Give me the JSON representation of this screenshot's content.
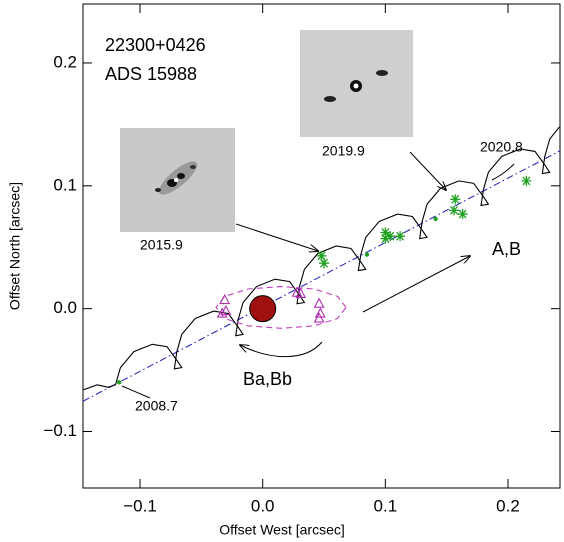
{
  "chart_data": {
    "type": "scatter",
    "xlabel": "Offset West [arcsec]",
    "ylabel": "Offset North [arcsec]",
    "xlim": [
      -0.1465,
      0.2424
    ],
    "ylim": [
      -0.146,
      0.248
    ],
    "xticks": [
      {
        "value": -0.1,
        "label": "−0.1"
      },
      {
        "value": 0,
        "label": "0.0"
      },
      0.1,
      0.2
    ],
    "yticks": [
      {
        "value": -0.1,
        "label": "−0.1"
      },
      {
        "value": 0,
        "label": "0.0"
      },
      0.1,
      0.2
    ],
    "annotations": [
      "22300+0426",
      "ADS 15988",
      "2015.9",
      "2019.9",
      "2020.8",
      "2008.7",
      "A,B",
      "Ba,Bb"
    ],
    "series": [
      {
        "color": "#2a2ab8",
        "line": "dashdot",
        "marker": "none",
        "x": [
          -0.1465,
          0.2424
        ],
        "y": [
          -0.0754,
          0.1285
        ]
      },
      {
        "color": "#000000",
        "line": "solid",
        "marker": "none",
        "x": [
          -0.146,
          -0.135,
          -0.126,
          -0.12,
          -0.116,
          -0.105,
          -0.09,
          -0.078,
          -0.07,
          -0.066,
          -0.072,
          -0.07,
          -0.066,
          -0.055,
          -0.04,
          -0.028,
          -0.02,
          -0.016,
          -0.022,
          -0.02,
          -0.016,
          -0.005,
          0.01,
          0.022,
          0.03,
          0.034,
          0.028,
          0.03,
          0.034,
          0.045,
          0.06,
          0.072,
          0.08,
          0.084,
          0.078,
          0.08,
          0.084,
          0.095,
          0.11,
          0.122,
          0.13,
          0.134,
          0.128,
          0.13,
          0.134,
          0.145,
          0.16,
          0.172,
          0.18,
          0.184,
          0.178,
          0.18,
          0.184,
          0.195,
          0.21,
          0.222,
          0.23,
          0.234,
          0.228,
          0.23,
          0.234,
          0.242
        ],
        "y": [
          -0.066,
          -0.062,
          -0.064,
          -0.062,
          -0.048,
          -0.035,
          -0.029,
          -0.031,
          -0.042,
          -0.048,
          -0.049,
          -0.035,
          -0.021,
          -0.008,
          -0.002,
          -0.004,
          -0.015,
          -0.021,
          -0.022,
          -0.009,
          0.005,
          0.018,
          0.024,
          0.022,
          0.011,
          0.005,
          0.004,
          0.018,
          0.032,
          0.045,
          0.051,
          0.049,
          0.038,
          0.032,
          0.031,
          0.044,
          0.058,
          0.071,
          0.077,
          0.075,
          0.064,
          0.058,
          0.057,
          0.071,
          0.085,
          0.098,
          0.104,
          0.102,
          0.091,
          0.085,
          0.084,
          0.097,
          0.111,
          0.124,
          0.13,
          0.128,
          0.117,
          0.111,
          0.11,
          0.124,
          0.138,
          0.148
        ]
      },
      {
        "color": "#c040c0",
        "line": "dashed",
        "marker": "none",
        "x": [
          0.068,
          0.061,
          0.042,
          0.015,
          -0.012,
          -0.031,
          -0.038,
          -0.031,
          -0.012,
          0.015,
          0.042,
          0.061,
          0.068
        ],
        "y": [
          0.001,
          0.01,
          0.016,
          0.018,
          0.016,
          0.01,
          0.001,
          -0.008,
          -0.014,
          -0.016,
          -0.014,
          -0.008,
          0.001
        ]
      },
      {
        "color": "#20a020",
        "line": "none",
        "marker": "dot",
        "x": [
          -0.117,
          0.085,
          0.141
        ],
        "y": [
          -0.06,
          0.044,
          0.073
        ]
      },
      {
        "color": "#20a020",
        "line": "none",
        "marker": "asterisk",
        "x": [
          0.05,
          0.048,
          0.1,
          0.104,
          0.1,
          0.112,
          0.157,
          0.156,
          0.163,
          0.215
        ],
        "y": [
          0.037,
          0.043,
          0.062,
          0.059,
          0.057,
          0.059,
          0.089,
          0.08,
          0.077,
          0.104
        ]
      },
      {
        "color": "#b030b0",
        "line": "none",
        "marker": "triangle",
        "x": [
          -0.031,
          -0.03,
          -0.033,
          0.028,
          0.031,
          0.046,
          0.047,
          0.046
        ],
        "y": [
          0.007,
          -0.002,
          -0.004,
          0.013,
          0.012,
          0.004,
          -0.004,
          -0.008
        ]
      },
      {
        "color": "#a01010",
        "line": "none",
        "marker": "circle",
        "x": [
          0
        ],
        "y": [
          0
        ]
      }
    ]
  }
}
